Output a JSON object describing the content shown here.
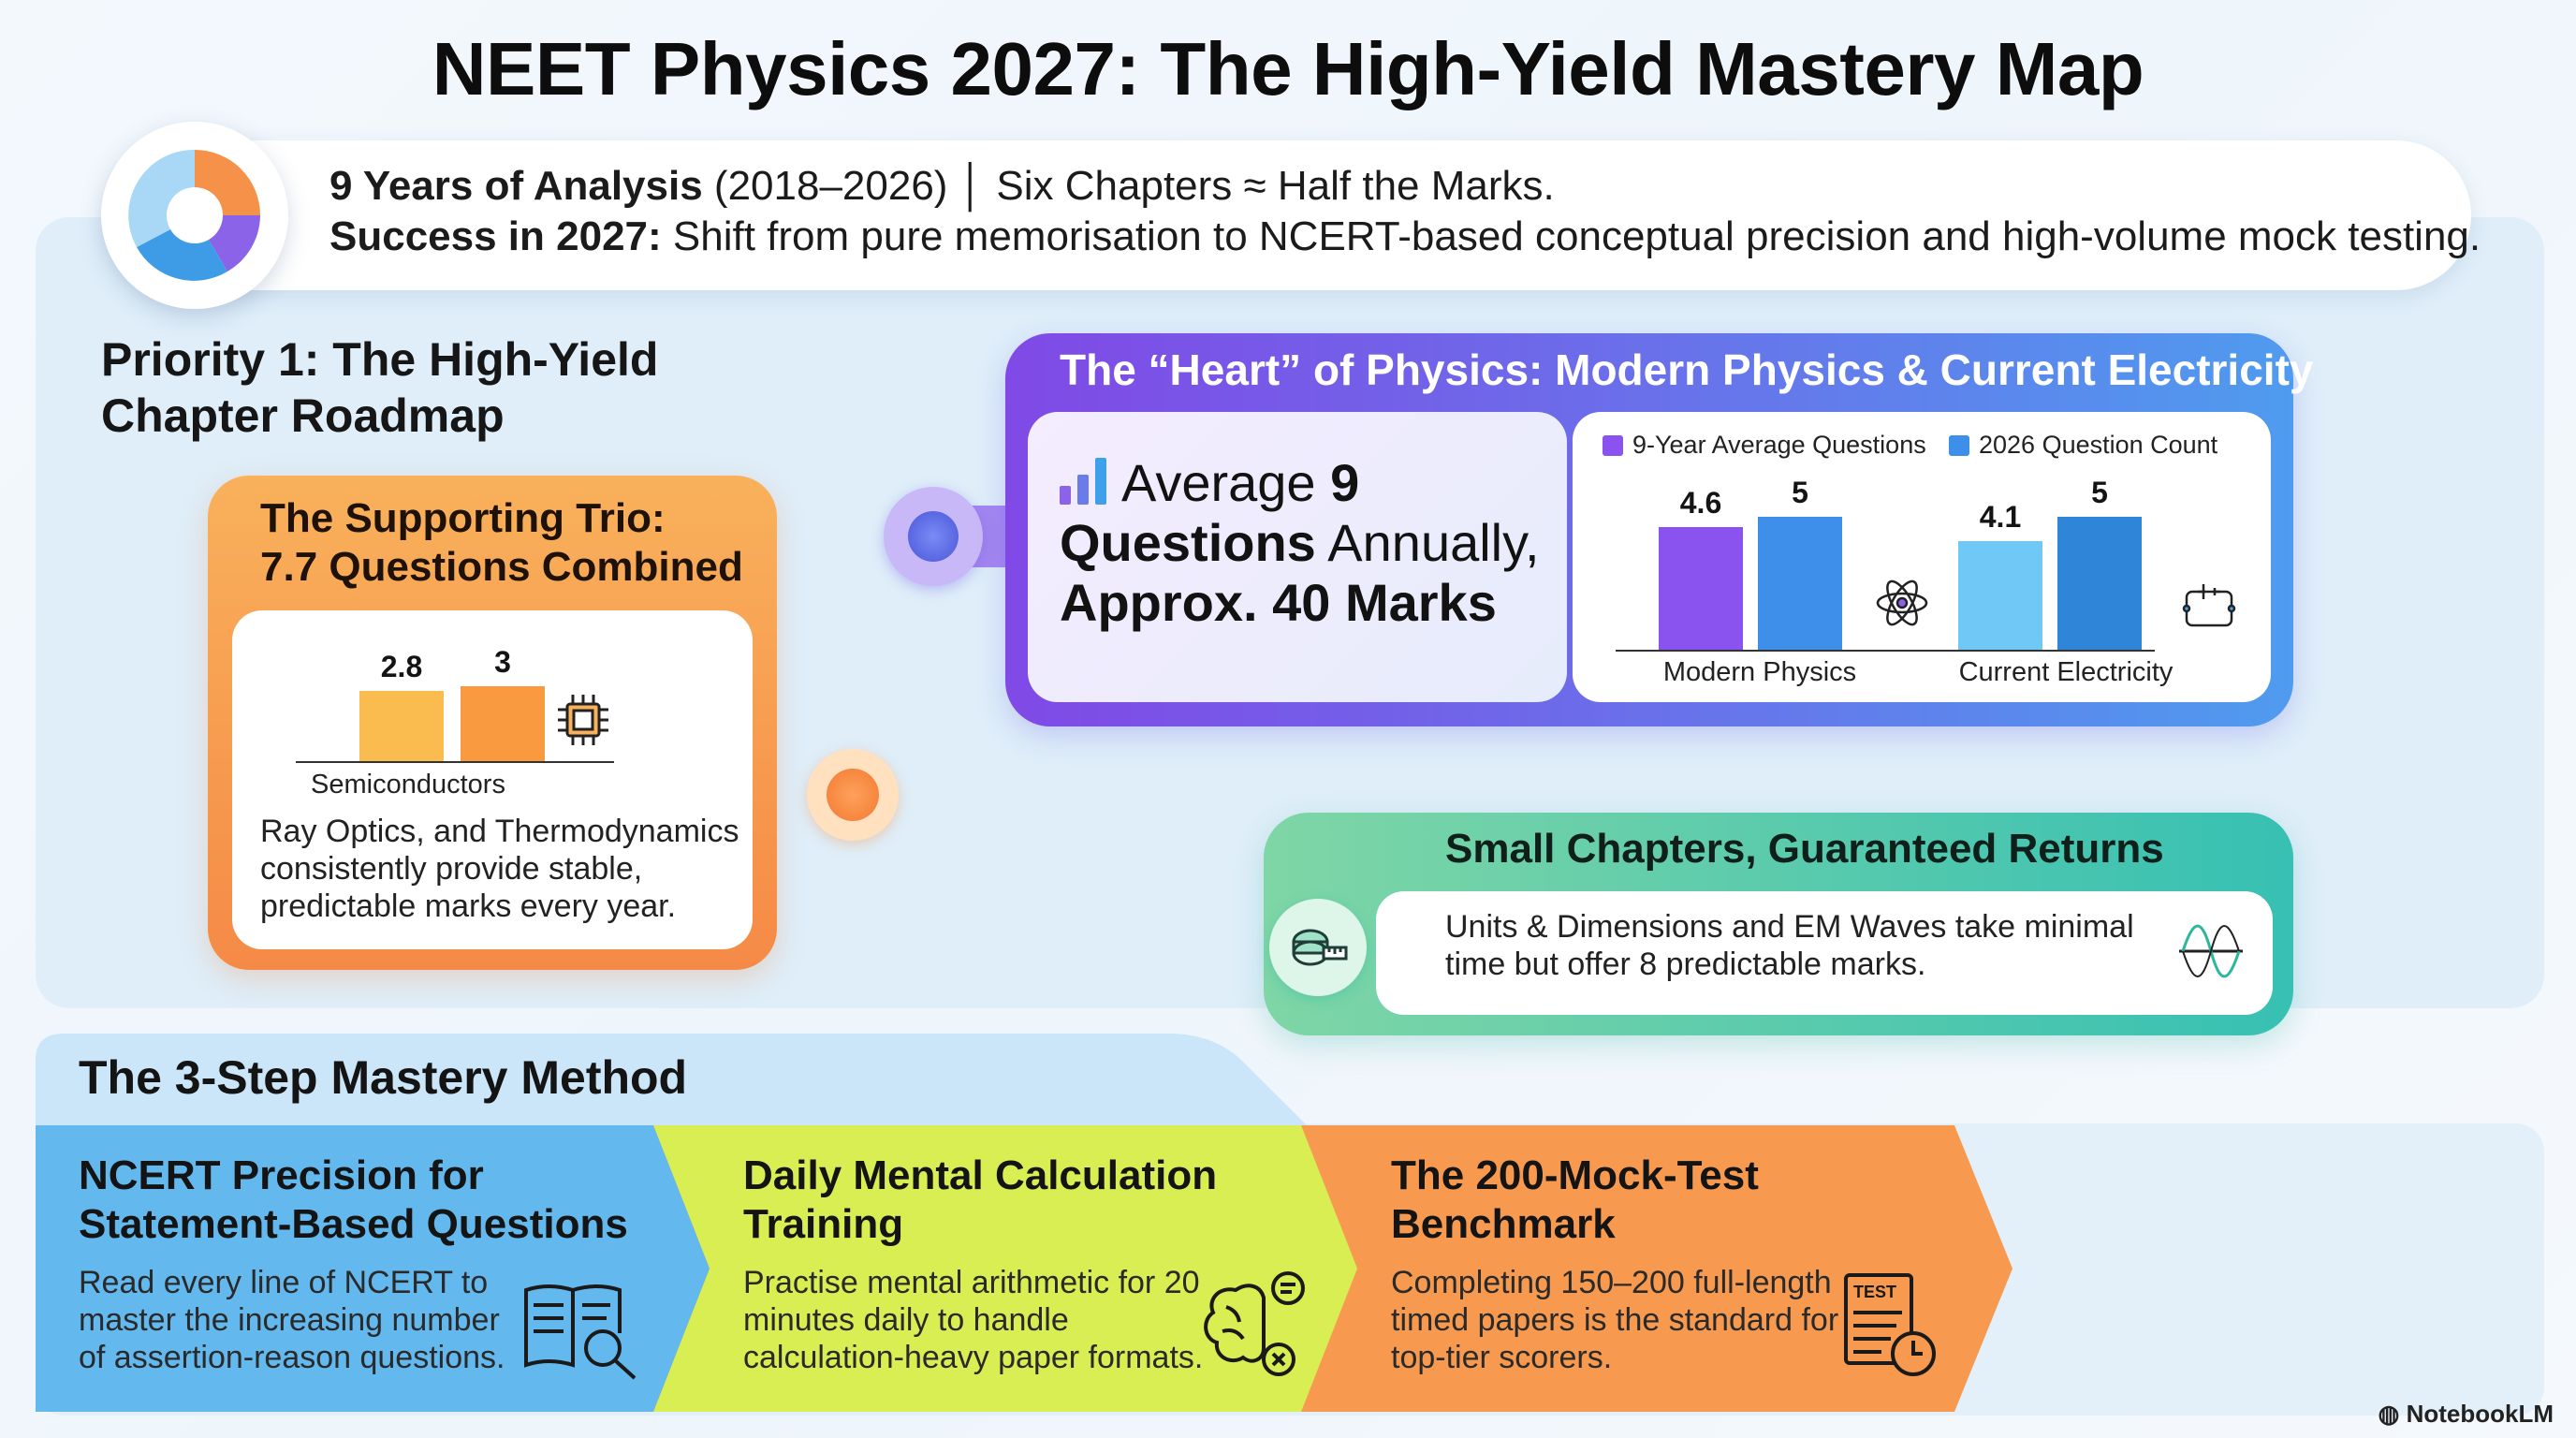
{
  "title": "NEET Physics 2027: The High-Yield Mastery Map",
  "header": {
    "line1_bold": "9 Years of Analysis",
    "line1_rest": " (2018–2026) │ Six Chapters ≈ Half the Marks.",
    "line2_bold": "Success in 2027:",
    "line2_rest": " Shift from pure memorisation to NCERT-based conceptual precision and high-volume mock testing."
  },
  "priority": {
    "heading_line1": "Priority 1: The High-Yield",
    "heading_line2": "Chapter Roadmap"
  },
  "trio": {
    "title_line1": "The Supporting Trio:",
    "title_line2": "7.7 Questions Combined",
    "text": "Ray Optics, and Thermodynamics consistently provide stable, predictable marks every year.",
    "icon": "chip-icon"
  },
  "heart": {
    "title": "The “Heart” of Physics: Modern Physics & Current Electricity",
    "stat_pre": "Average ",
    "stat_bold1": "9",
    "stat_bold2": "Questions",
    "stat_mid": " Annually,",
    "stat_bold3": "Approx. 40 Marks"
  },
  "small": {
    "title": "Small Chapters, Guaranteed Returns",
    "text": "Units & Dimensions and EM Waves take minimal time but offer 8 predictable marks."
  },
  "method": {
    "title": "The 3-Step Mastery Method",
    "steps": [
      {
        "title": "NCERT Precision for Statement-Based Questions",
        "text": "Read every line of NCERT to master the increasing number of assertion-reason questions.",
        "color": "#63b8ee",
        "icon": "book-magnifier-icon"
      },
      {
        "title": "Daily Mental Calculation Training",
        "text": "Practise mental arithmetic for 20 minutes daily to handle calculation-heavy paper formats.",
        "color": "#d8ee52",
        "icon": "brain-icon"
      },
      {
        "title": "The 200-Mock-Test Benchmark",
        "text": "Completing 150–200 full-length timed papers is the standard for top-tier scorers.",
        "color": "#f79a4f",
        "icon": "test-clock-icon"
      }
    ]
  },
  "credit": "NotebookLM",
  "chart_data": [
    {
      "type": "bar",
      "categories": [
        "Semiconductors"
      ],
      "series": [
        {
          "values": [
            2.8
          ]
        },
        {
          "values": [
            3
          ]
        }
      ],
      "colors": [
        "#fbbc4f",
        "#f99a40"
      ]
    },
    {
      "type": "bar",
      "categories": [
        "Modern Physics",
        "Current Electricity"
      ],
      "series": [
        {
          "name": "9-Year Average Questions",
          "values": [
            4.6,
            4.1
          ]
        },
        {
          "name": "2026 Question Count",
          "values": [
            5,
            5
          ]
        }
      ],
      "colors": [
        "#8a52ef",
        "#3e8fea",
        "#6fc8f5",
        "#2f86d9"
      ]
    }
  ]
}
